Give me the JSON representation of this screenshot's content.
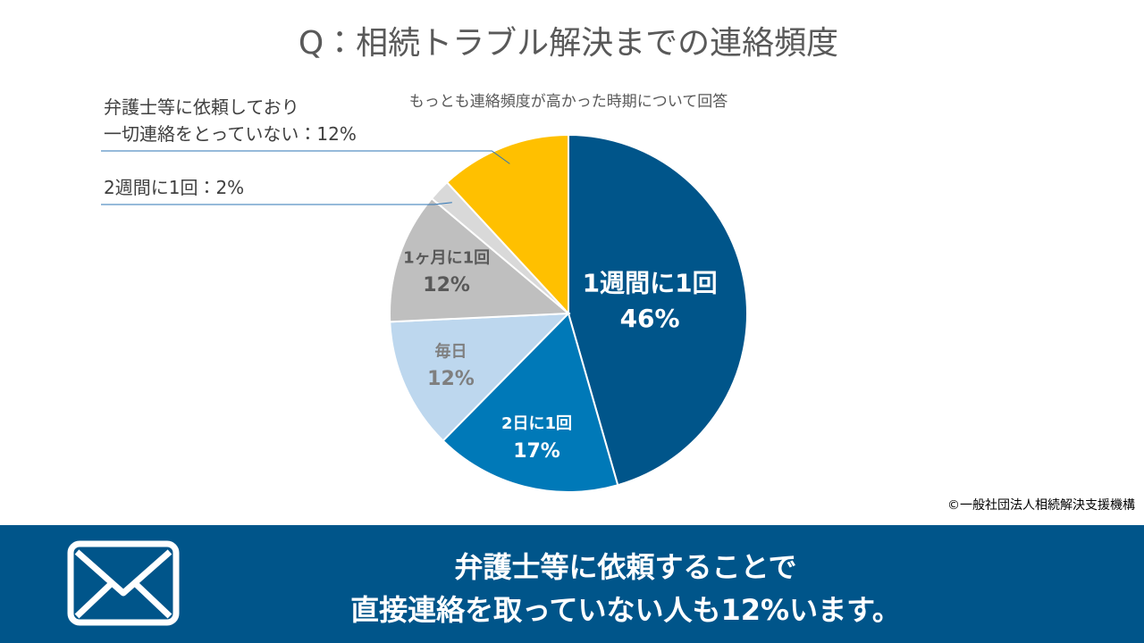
{
  "chart_data": {
    "type": "pie",
    "title": "Q：相続トラブル解決までの連絡頻度",
    "subtitle": "もっとも連絡頻度が高かった時期について回答",
    "categories": [
      "1週間に1回",
      "2日に1回",
      "毎日",
      "1ヶ月に1回",
      "2週間に1回",
      "弁護士等に依頼しており\n一切連絡をとっていない"
    ],
    "values": [
      46,
      17,
      12,
      12,
      2,
      12
    ],
    "value_labels": [
      "46%",
      "17%",
      "12%",
      "12%",
      "2%",
      "12%"
    ],
    "colors": [
      "#00558a",
      "#0079b8",
      "#bdd7ee",
      "#bfbfbf",
      "#d9d9d9",
      "#ffc000"
    ],
    "label_colors": [
      "#ffffff",
      "#ffffff",
      "#7f7f7f",
      "#595959",
      "#404040",
      "#404040"
    ],
    "label_position": [
      "inside",
      "inside",
      "inside",
      "inside",
      "outside",
      "outside"
    ],
    "label_separator": "："
  },
  "credit": "©一般社団法人相続解決支援機構",
  "banner": {
    "lines": [
      "弁護士等に依頼することで",
      "直接連絡を取っていない人も12%います。"
    ]
  }
}
